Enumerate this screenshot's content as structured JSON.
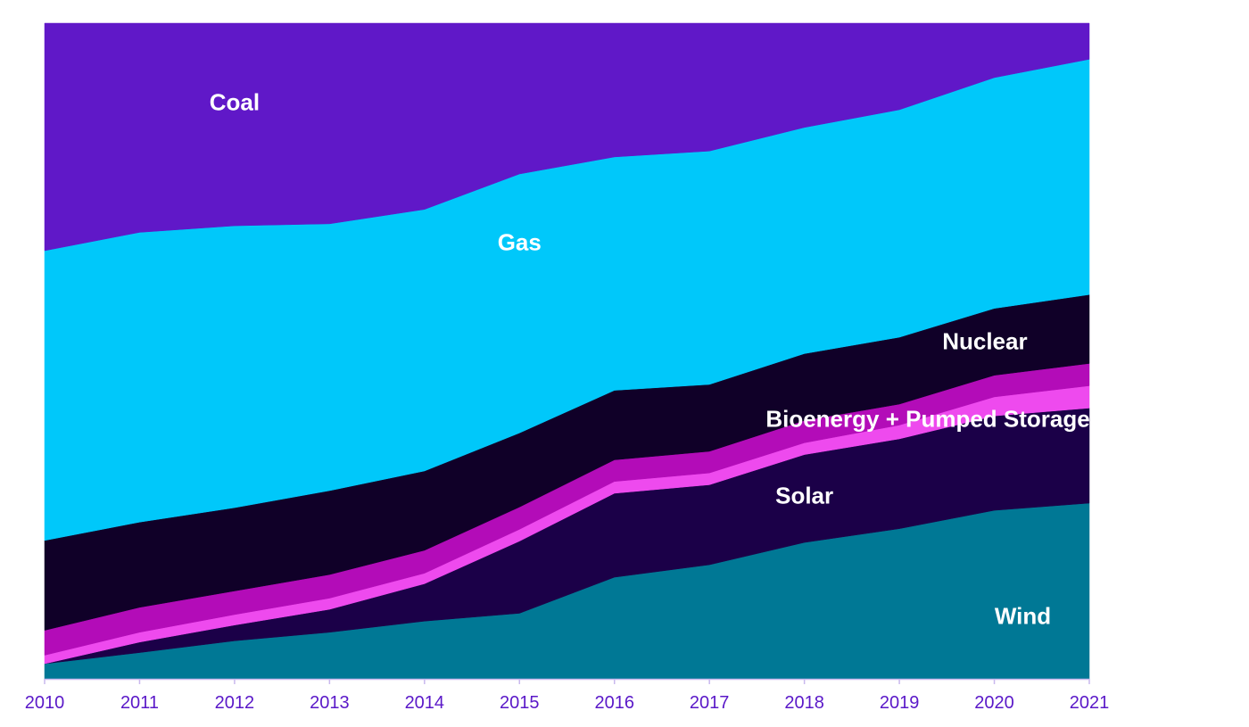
{
  "chart_data": {
    "type": "area",
    "stacked": true,
    "normalized": true,
    "x": [
      "2010",
      "2011",
      "2012",
      "2013",
      "2014",
      "2015",
      "2016",
      "2017",
      "2018",
      "2019",
      "2020",
      "2021"
    ],
    "ylim": [
      0,
      100
    ],
    "grid": false,
    "legend": "labels inside areas",
    "axis_color": "#5a18c8",
    "series": [
      {
        "name": "Wind",
        "color": "#007895",
        "values": [
          2.3,
          4.0,
          5.8,
          7.1,
          8.8,
          10.0,
          15.5,
          17.4,
          20.8,
          22.9,
          25.7,
          26.8
        ]
      },
      {
        "name": "Solar",
        "color": "#1b0048",
        "values": [
          0.0,
          1.6,
          2.4,
          3.5,
          5.7,
          11.0,
          12.8,
          12.2,
          13.4,
          13.7,
          14.4,
          14.5
        ]
      },
      {
        "name": "Bioenergy + Pumped Storage",
        "color": "#ee4aee",
        "values": [
          1.3,
          1.5,
          1.6,
          1.7,
          1.6,
          1.8,
          1.8,
          1.8,
          1.8,
          2.1,
          2.9,
          3.4
        ]
      },
      {
        "name": "",
        "color": "#b30cb8",
        "values": [
          3.8,
          3.8,
          3.6,
          3.6,
          3.5,
          3.4,
          3.3,
          3.3,
          3.4,
          3.2,
          3.3,
          3.4
        ]
      },
      {
        "name": "Nuclear",
        "color": "#100028",
        "values": [
          13.7,
          13.0,
          12.7,
          12.8,
          12.1,
          11.3,
          10.6,
          10.2,
          10.2,
          10.2,
          10.2,
          10.5
        ]
      },
      {
        "name": "Gas",
        "color": "#00c8fa",
        "values": [
          44.2,
          44.2,
          43.0,
          40.7,
          39.9,
          39.5,
          35.6,
          35.6,
          34.5,
          34.7,
          35.2,
          35.9
        ]
      },
      {
        "name": "Coal",
        "color": "#6018c8",
        "values": [
          34.7,
          31.9,
          30.9,
          30.6,
          28.4,
          23.0,
          20.4,
          19.5,
          15.9,
          13.2,
          8.3,
          5.5
        ]
      }
    ],
    "labels": [
      {
        "series": "Coal",
        "x": 2012.0,
        "y": 87.7
      },
      {
        "series": "Gas",
        "x": 2015.0,
        "y": 66.3
      },
      {
        "series": "Nuclear",
        "x": 2019.9,
        "y": 51.2
      },
      {
        "series": "Bioenergy + Pumped Storage",
        "x": 2019.3,
        "y": 39.4
      },
      {
        "series": "Solar",
        "x": 2018.0,
        "y": 27.7
      },
      {
        "series": "Wind",
        "x": 2020.3,
        "y": 9.3
      }
    ]
  }
}
